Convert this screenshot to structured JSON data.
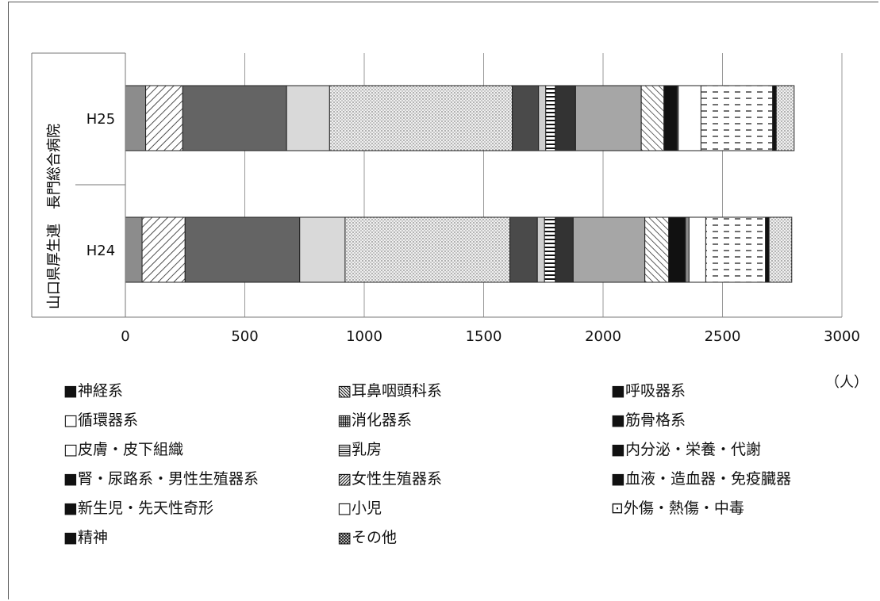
{
  "chart_data": {
    "type": "bar",
    "orientation": "horizontal",
    "stacked": true,
    "group_label": "山口県厚生連　長門総合病院",
    "categories": [
      "H25",
      "H24"
    ],
    "xlim": [
      0,
      3000
    ],
    "xticks": [
      "0",
      "500",
      "1000",
      "1500",
      "2000",
      "2500",
      "3000"
    ],
    "unit": "（人）",
    "series": [
      {
        "name": "神経系",
        "values": [
          85,
          70
        ],
        "color": "#8c8c8c",
        "pattern": "solid"
      },
      {
        "name": "耳鼻咽頭科系",
        "values": [
          155,
          180
        ],
        "color": "#ffffff",
        "pattern": "diag"
      },
      {
        "name": "呼吸器系",
        "values": [
          435,
          480
        ],
        "color": "#646464",
        "pattern": "solid"
      },
      {
        "name": "循環器系",
        "values": [
          180,
          190
        ],
        "color": "#d9d9d9",
        "pattern": "solid"
      },
      {
        "name": "消化器系",
        "values": [
          765,
          690
        ],
        "color": "#e6e6e6",
        "pattern": "dots"
      },
      {
        "name": "筋骨格系",
        "values": [
          110,
          115
        ],
        "color": "#4a4a4a",
        "pattern": "solid"
      },
      {
        "name": "皮膚・皮下組織",
        "values": [
          30,
          30
        ],
        "color": "#cfcfcf",
        "pattern": "solid"
      },
      {
        "name": "乳房",
        "values": [
          40,
          45
        ],
        "color": "#ffffff",
        "pattern": "hlines"
      },
      {
        "name": "内分泌・栄養・代謝",
        "values": [
          85,
          75
        ],
        "color": "#333333",
        "pattern": "solid"
      },
      {
        "name": "腎・尿路系・男性生殖器系",
        "values": [
          275,
          300
        ],
        "color": "#a6a6a6",
        "pattern": "solid"
      },
      {
        "name": "女性生殖器系",
        "values": [
          95,
          100
        ],
        "color": "#ffffff",
        "pattern": "diag2"
      },
      {
        "name": "血液・造血器・免疫臓器",
        "values": [
          55,
          70
        ],
        "color": "#111111",
        "pattern": "solid"
      },
      {
        "name": "新生児・先天性奇形",
        "values": [
          5,
          15
        ],
        "color": "#8c8c8c",
        "pattern": "solid"
      },
      {
        "name": "小児",
        "values": [
          95,
          70
        ],
        "color": "#ffffff",
        "pattern": "solid"
      },
      {
        "name": "外傷・熱傷・中毒",
        "values": [
          300,
          250
        ],
        "color": "#ffffff",
        "pattern": "dash"
      },
      {
        "name": "精神",
        "values": [
          15,
          15
        ],
        "color": "#111111",
        "pattern": "solid"
      },
      {
        "name": "その他",
        "values": [
          75,
          95
        ],
        "color": "#bdbdbd",
        "pattern": "dots"
      }
    ]
  },
  "legend": [
    "■神経系",
    "▧耳鼻咽頭科系",
    "■呼吸器系",
    "□循環器系",
    "▦消化器系",
    "■筋骨格系",
    "□皮膚・皮下組織",
    "▤乳房",
    "■内分泌・栄養・代謝",
    "■腎・尿路系・男性生殖器系",
    "▨女性生殖器系",
    "■血液・造血器・免疫臓器",
    "■新生児・先天性奇形",
    "□小児",
    "⊡外傷・熱傷・中毒",
    "■精神",
    "▩その他"
  ]
}
